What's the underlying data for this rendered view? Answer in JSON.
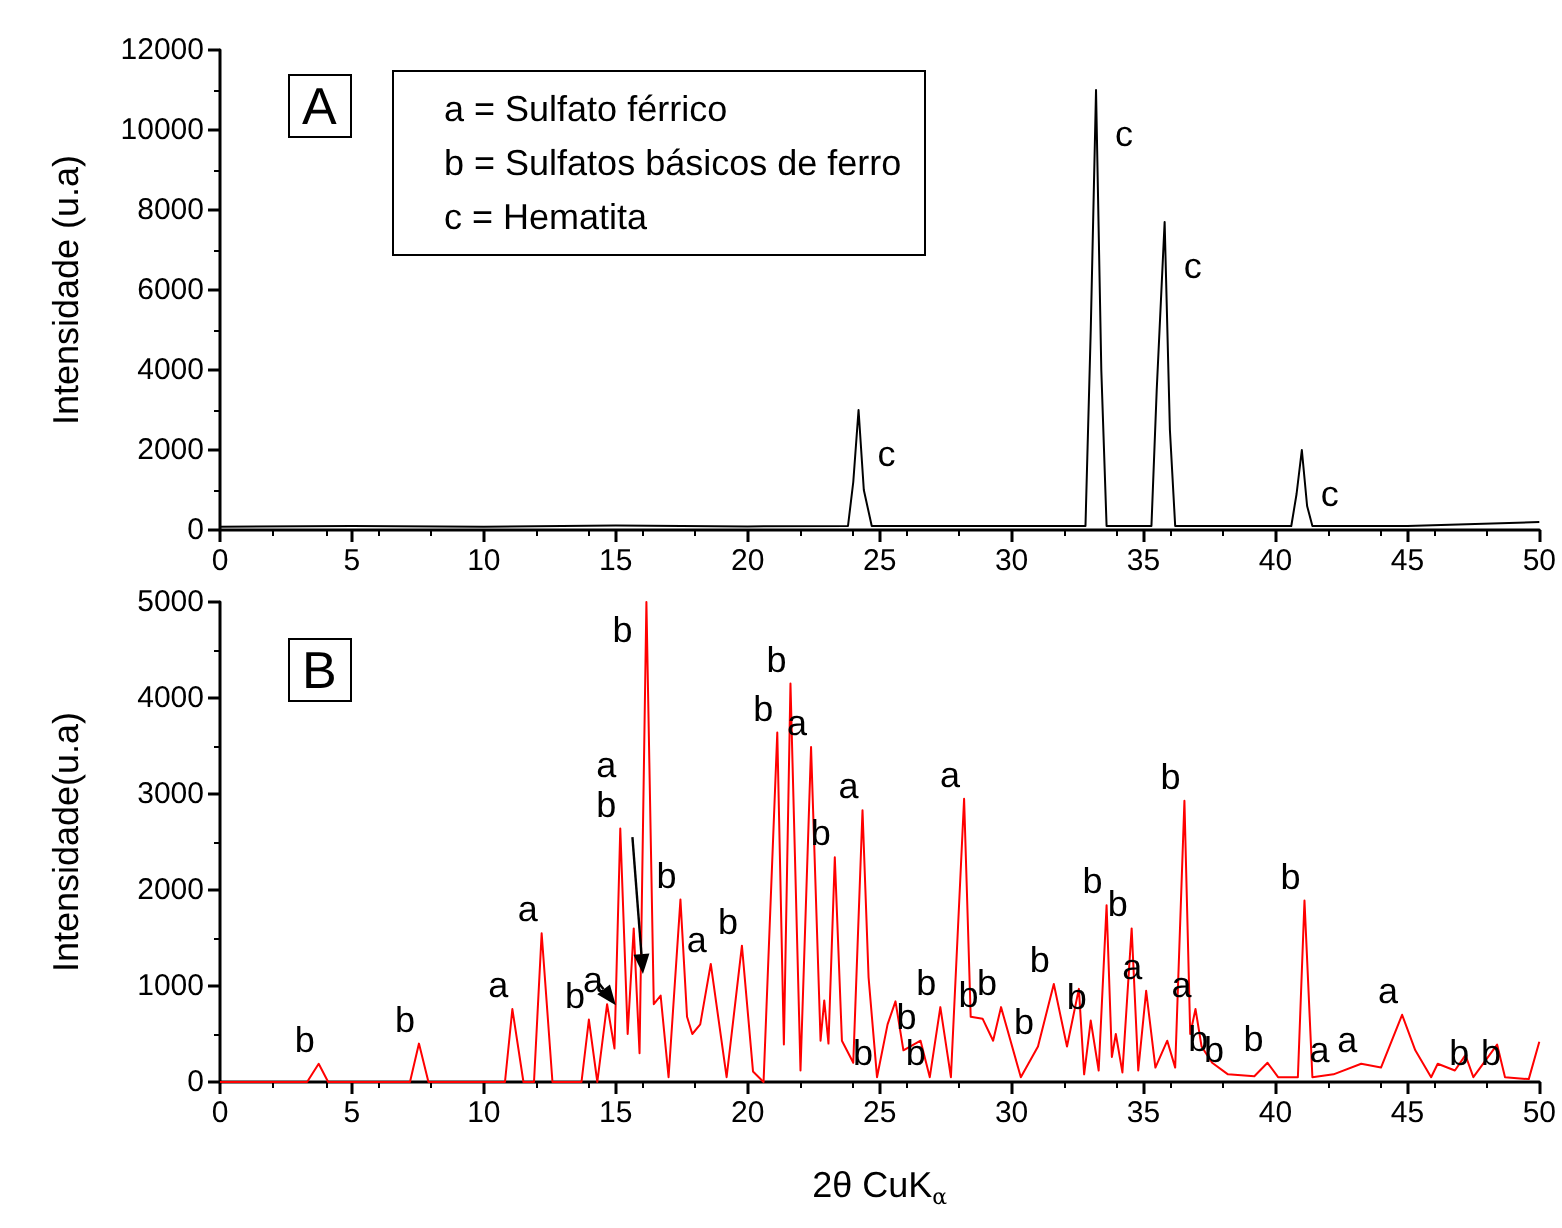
{
  "chart_data": [
    {
      "type": "line",
      "title": "A",
      "ylabel": "Intensidade (u.a)",
      "annotations": [
        "a = Sulfato férrico",
        "b = Sulfatos básicos de ferro",
        "c = Hematita",
        {
          "text": "c",
          "x": 24.2,
          "y": 3000
        },
        {
          "text": "c",
          "x": 33.2,
          "y": 11000
        },
        {
          "text": "c",
          "x": 35.8,
          "y": 7700
        },
        {
          "text": "c",
          "x": 41.0,
          "y": 2000
        }
      ],
      "series": [
        {
          "color": "#000000",
          "x": [
            0,
            5,
            10,
            15,
            20,
            23.8,
            24.0,
            24.2,
            24.4,
            24.7,
            30,
            32.8,
            33.0,
            33.2,
            33.4,
            33.6,
            35.3,
            35.5,
            35.8,
            36.0,
            36.2,
            40.6,
            40.8,
            41.0,
            41.2,
            41.4,
            45,
            50
          ],
          "values": [
            80,
            100,
            80,
            110,
            90,
            100,
            1200,
            3000,
            1000,
            100,
            100,
            100,
            5000,
            11000,
            4000,
            100,
            100,
            3500,
            7700,
            2500,
            100,
            100,
            900,
            2000,
            600,
            100,
            100,
            200
          ]
        }
      ],
      "xlim": [
        0,
        50
      ],
      "xticks": [
        0,
        5,
        10,
        15,
        20,
        25,
        30,
        35,
        40,
        45,
        50
      ],
      "ylim": [
        0,
        12000
      ],
      "yticks": [
        0,
        2000,
        4000,
        6000,
        8000,
        10000,
        12000
      ],
      "grid": false,
      "marker": "none",
      "line_style": "solid"
    },
    {
      "type": "line",
      "title": "B",
      "xlabel": "2θ CuK$_{α}$",
      "ylabel": "Intensidade(u.a)",
      "annotations": [
        {
          "text": "b",
          "x": 3.74,
          "y": 190
        },
        {
          "text": "b",
          "x": 7.54,
          "y": 400
        },
        {
          "text": "a",
          "x": 11.08,
          "y": 760
        },
        {
          "text": "a",
          "x": 12.19,
          "y": 1550
        },
        {
          "text": "b",
          "x": 13.98,
          "y": 650
        },
        {
          "text": "a",
          "x": 14.67,
          "y": 810
        },
        {
          "text": "b",
          "x": 15.17,
          "y": 2640
        },
        {
          "text": "a",
          "x": 15.17,
          "y": 2640
        },
        {
          "text": "b",
          "x": 16.16,
          "y": 5000
        },
        {
          "text": "b",
          "x": 17.45,
          "y": 1900
        },
        {
          "text": "a",
          "x": 18.6,
          "y": 1230
        },
        {
          "text": "b",
          "x": 19.78,
          "y": 1420
        },
        {
          "text": "b",
          "x": 21.12,
          "y": 3640
        },
        {
          "text": "b",
          "x": 21.62,
          "y": 4150
        },
        {
          "text": "a",
          "x": 22.4,
          "y": 3490
        },
        {
          "text": "b",
          "x": 23.3,
          "y": 2340
        },
        {
          "text": "a",
          "x": 24.35,
          "y": 2830
        },
        {
          "text": "b",
          "x": 24.9,
          "y": 50
        },
        {
          "text": "b",
          "x": 26.55,
          "y": 430
        },
        {
          "text": "b",
          "x": 26.9,
          "y": 50
        },
        {
          "text": "b",
          "x": 27.3,
          "y": 780
        },
        {
          "text": "a",
          "x": 28.2,
          "y": 2950
        },
        {
          "text": "b",
          "x": 28.9,
          "y": 660
        },
        {
          "text": "b",
          "x": 29.6,
          "y": 780
        },
        {
          "text": "b",
          "x": 31.0,
          "y": 370
        },
        {
          "text": "b",
          "x": 31.6,
          "y": 1020
        },
        {
          "text": "b",
          "x": 33.0,
          "y": 640
        },
        {
          "text": "b",
          "x": 33.6,
          "y": 1840
        },
        {
          "text": "b",
          "x": 34.55,
          "y": 1600
        },
        {
          "text": "a",
          "x": 35.1,
          "y": 950
        },
        {
          "text": "b",
          "x": 36.55,
          "y": 2930
        },
        {
          "text": "a",
          "x": 36.97,
          "y": 760
        },
        {
          "text": "b",
          "x": 37.6,
          "y": 200
        },
        {
          "text": "b",
          "x": 38.2,
          "y": 80
        },
        {
          "text": "b",
          "x": 39.7,
          "y": 200
        },
        {
          "text": "b",
          "x": 41.1,
          "y": 1890
        },
        {
          "text": "a",
          "x": 42.2,
          "y": 80
        },
        {
          "text": "a",
          "x": 43.25,
          "y": 190
        },
        {
          "text": "a",
          "x": 44.8,
          "y": 700
        },
        {
          "text": "b",
          "x": 47.5,
          "y": 50
        },
        {
          "text": "b",
          "x": 48.7,
          "y": 50
        }
      ],
      "series": [
        {
          "color": "#ff0000",
          "x": [
            0,
            3.3,
            3.74,
            4.1,
            7.2,
            7.54,
            7.9,
            10.8,
            11.08,
            11.5,
            11.9,
            12.19,
            12.6,
            13.7,
            13.98,
            14.3,
            14.67,
            14.95,
            15.17,
            15.45,
            15.68,
            15.9,
            16.16,
            16.44,
            16.7,
            17.0,
            17.45,
            17.7,
            17.9,
            18.2,
            18.6,
            19.2,
            19.78,
            20.2,
            20.6,
            21.12,
            21.37,
            21.62,
            22.0,
            22.4,
            22.76,
            22.9,
            23.06,
            23.3,
            23.57,
            24.0,
            24.35,
            24.58,
            24.9,
            25.3,
            25.6,
            25.9,
            26.55,
            26.9,
            27.3,
            27.7,
            28.2,
            28.45,
            28.9,
            29.3,
            29.6,
            30.35,
            31.0,
            31.6,
            32.1,
            32.55,
            32.75,
            33.0,
            33.3,
            33.6,
            33.8,
            33.95,
            34.2,
            34.55,
            34.8,
            35.1,
            35.45,
            35.9,
            36.2,
            36.55,
            36.77,
            36.97,
            37.2,
            37.6,
            38.2,
            39.2,
            39.7,
            40.1,
            40.85,
            41.1,
            41.4,
            42.2,
            43.25,
            44.0,
            44.8,
            45.3,
            45.9,
            46.15,
            46.8,
            47.2,
            47.5,
            48.4,
            48.7,
            49.6,
            50.0
          ],
          "values": [
            0,
            0,
            190,
            0,
            0,
            400,
            0,
            0,
            760,
            0,
            0,
            1550,
            0,
            0,
            650,
            0,
            810,
            350,
            2640,
            500,
            1600,
            300,
            5000,
            810,
            900,
            50,
            1900,
            680,
            500,
            600,
            1230,
            50,
            1420,
            110,
            0,
            3640,
            390,
            4150,
            120,
            3490,
            430,
            850,
            400,
            2340,
            430,
            200,
            2830,
            1090,
            50,
            600,
            840,
            330,
            430,
            50,
            780,
            50,
            2950,
            680,
            660,
            430,
            780,
            50,
            370,
            1020,
            370,
            970,
            80,
            640,
            120,
            1840,
            260,
            500,
            100,
            1600,
            120,
            950,
            150,
            430,
            150,
            2930,
            500,
            760,
            370,
            200,
            80,
            60,
            200,
            50,
            50,
            1890,
            50,
            80,
            190,
            150,
            700,
            330,
            50,
            190,
            120,
            280,
            50,
            390,
            50,
            30,
            420
          ]
        }
      ],
      "xlim": [
        0,
        50
      ],
      "xticks": [
        0,
        5,
        10,
        15,
        20,
        25,
        30,
        35,
        40,
        45,
        50
      ],
      "ylim": [
        0,
        5000
      ],
      "yticks": [
        0,
        1000,
        2000,
        3000,
        4000,
        5000
      ],
      "grid": false,
      "marker": "none",
      "line_style": "solid"
    }
  ]
}
